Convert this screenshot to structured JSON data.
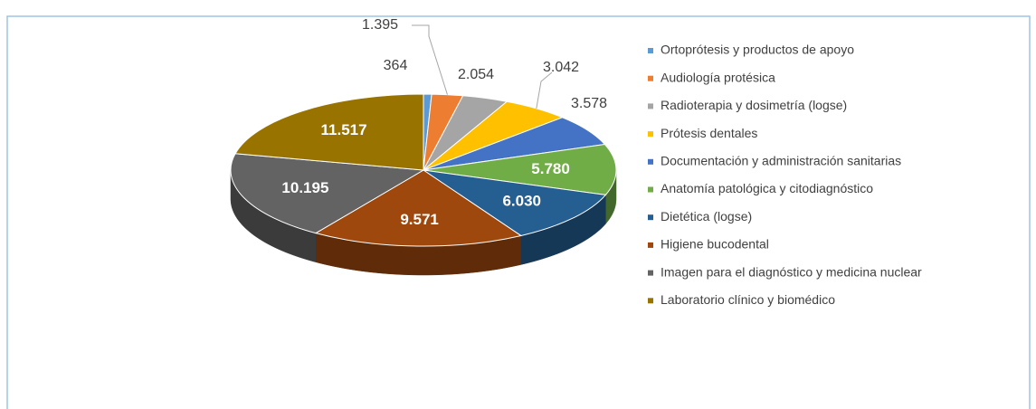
{
  "chart_data": {
    "type": "pie3d",
    "categories": [
      "Ortoprótesis y productos de apoyo",
      "Audiología protésica",
      "Radioterapia y dosimetría (logse)",
      "Prótesis dentales",
      "Documentación y administración sanitarias",
      "Anatomía patológica y citodiagnóstico",
      "Dietética (logse)",
      "Higiene bucodental",
      "Imagen para el diagnóstico y medicina nuclear",
      "Laboratorio clínico y biomédico"
    ],
    "values": [
      364,
      1395,
      2054,
      3042,
      3578,
      5780,
      6030,
      9571,
      10195,
      11517
    ],
    "value_labels": [
      "364",
      "1.395",
      "2.054",
      "3.042",
      "3.578",
      "5.780",
      "6.030",
      "9.571",
      "10.195",
      "11.517"
    ],
    "colors": [
      "#5b9bd5",
      "#ed7d31",
      "#a5a5a5",
      "#ffc000",
      "#4472c4",
      "#70ad47",
      "#255e91",
      "#9e480e",
      "#636363",
      "#997300"
    ],
    "legend": "right"
  }
}
